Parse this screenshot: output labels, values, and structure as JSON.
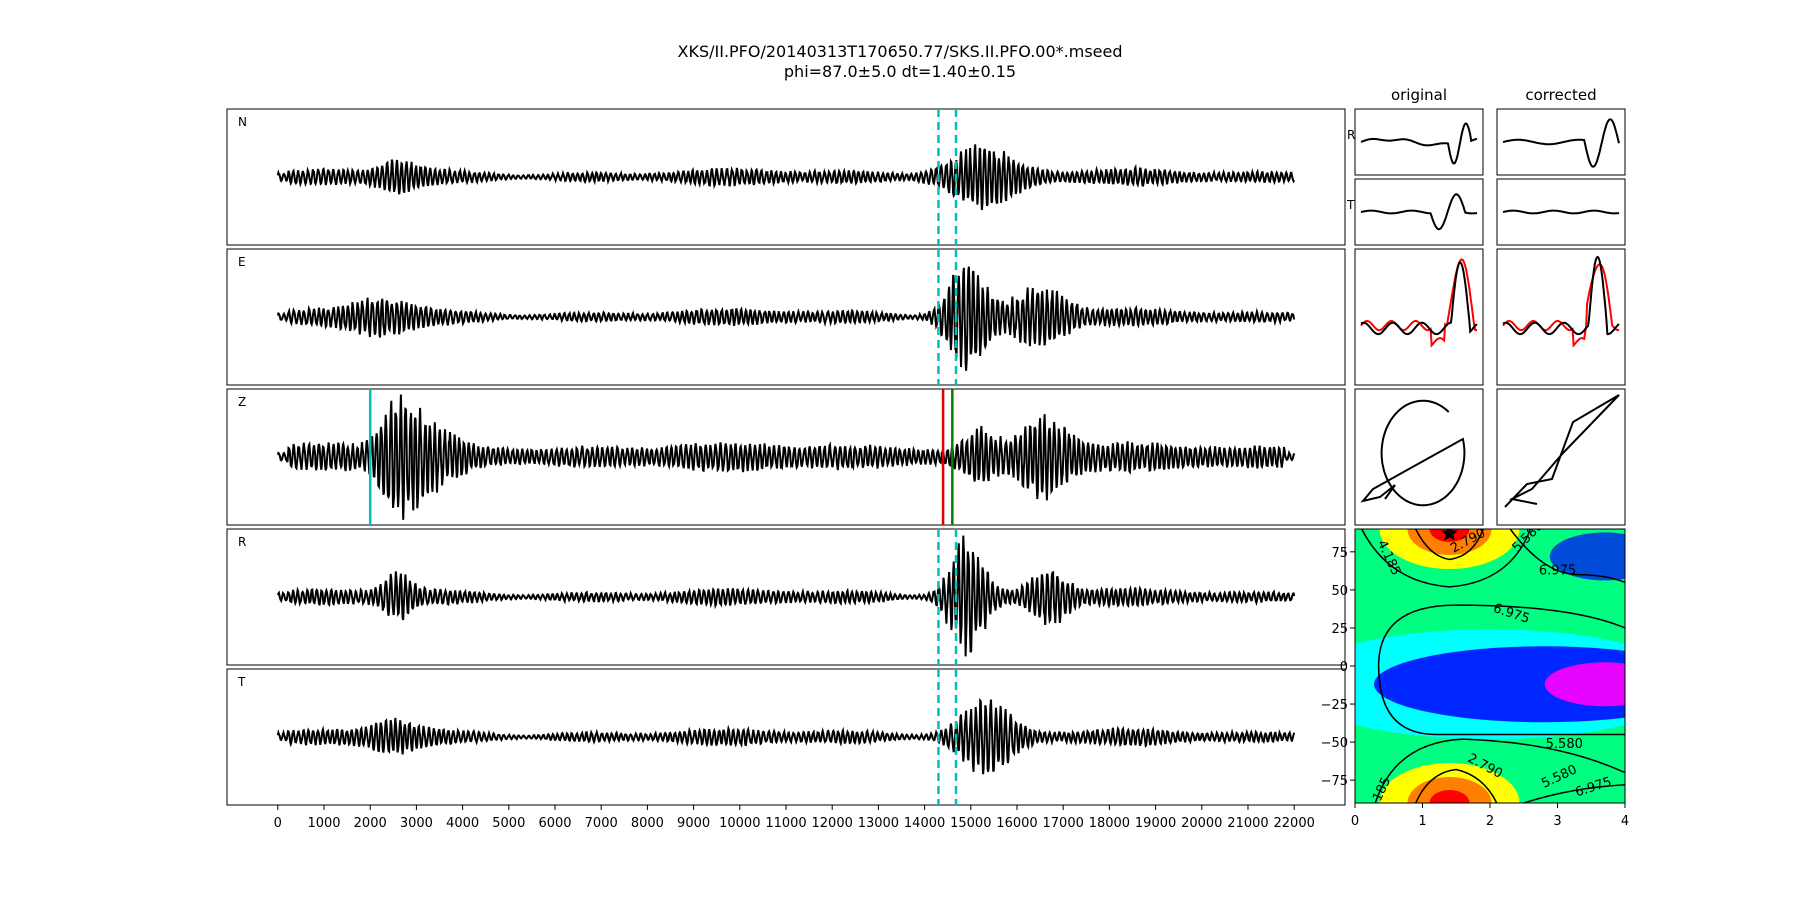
{
  "title": {
    "line1": "XKS/II.PFO/20140313T170650.77/SKS.II.PFO.00*.mseed",
    "line2": "phi=87.0±5.0 dt=1.40±0.15"
  },
  "colors": {
    "trace": "#000000",
    "window_marker": "#00bfbf",
    "p_marker": "#00bfbf",
    "pick_red": "#e00000",
    "pick_green": "#008000",
    "particle_red": "#ff0000"
  },
  "chart_data": [
    {
      "type": "line",
      "name": "seismogram-traces",
      "channels": [
        "N",
        "E",
        "Z",
        "R",
        "T"
      ],
      "xticks": [
        0,
        1000,
        2000,
        3000,
        4000,
        5000,
        6000,
        7000,
        8000,
        9000,
        10000,
        11000,
        12000,
        13000,
        14000,
        15000,
        16000,
        17000,
        18000,
        19000,
        20000,
        21000,
        22000
      ],
      "xlim": [
        -1100,
        23100
      ],
      "data_range": [
        0,
        22000
      ],
      "window_markers_x": [
        14300,
        14680
      ],
      "z_markers": [
        {
          "x": 2000,
          "color": "#00bfbf"
        },
        {
          "x": 14400,
          "color": "#e00000"
        },
        {
          "x": 14600,
          "color": "#008000"
        }
      ]
    },
    {
      "type": "line",
      "name": "waveform-panels",
      "column_titles": [
        "original",
        "corrected"
      ],
      "row_labels": [
        "R",
        "T"
      ]
    },
    {
      "type": "heatmap",
      "name": "error-surface",
      "xticks": [
        0,
        1,
        2,
        3,
        4
      ],
      "yticks": [
        75,
        50,
        25,
        0,
        -25,
        -50,
        -75
      ],
      "xlim": [
        0,
        4
      ],
      "ylim": [
        -90,
        90
      ],
      "best_fit": {
        "dt": 1.4,
        "phi": 87.0
      },
      "contour_labels": [
        "4.185",
        "2.790",
        "5.580",
        "6.975",
        "6.975",
        "5.580",
        "2.790",
        "5.580",
        "6.975",
        "185"
      ]
    }
  ]
}
